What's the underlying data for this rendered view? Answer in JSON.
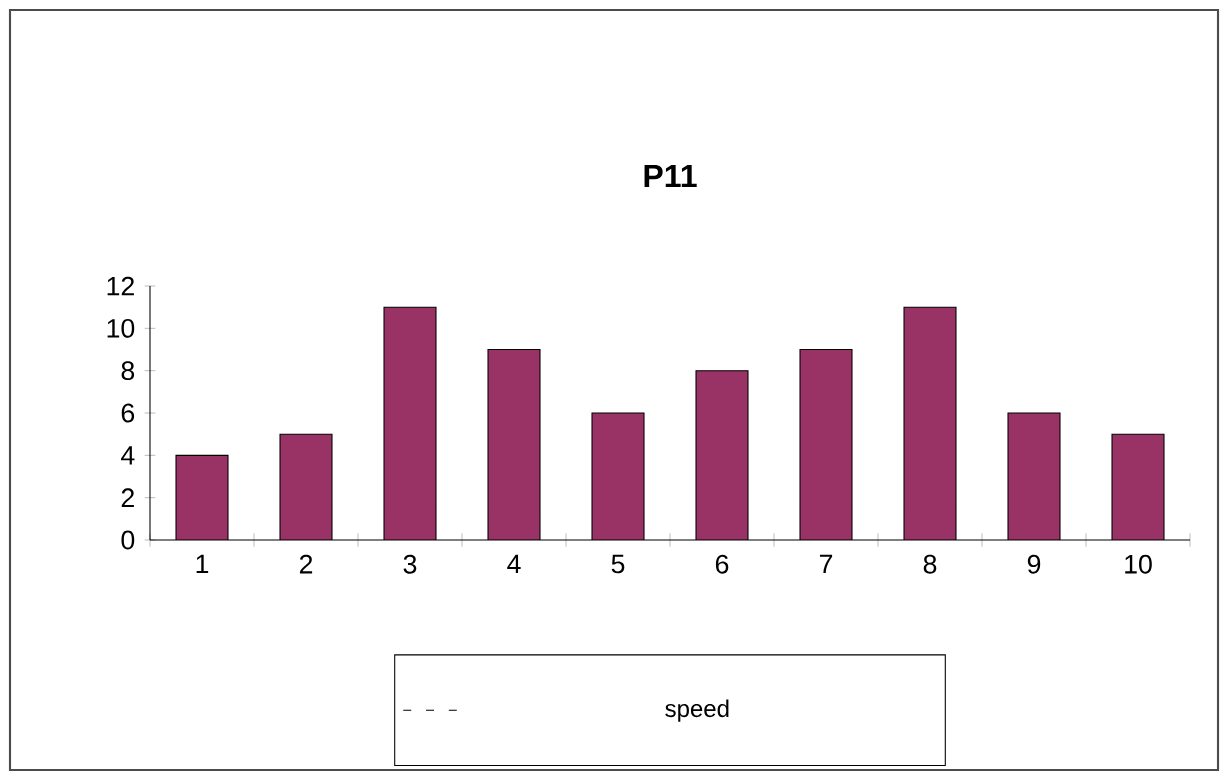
{
  "chart_data": {
    "type": "bar",
    "title": "P11",
    "categories": [
      "1",
      "2",
      "3",
      "4",
      "5",
      "6",
      "7",
      "8",
      "9",
      "10"
    ],
    "series": [
      {
        "name": "speed",
        "color": "#993366",
        "values": [
          4,
          5,
          11,
          9,
          6,
          8,
          9,
          11,
          6,
          5
        ]
      }
    ],
    "ylim": [
      0,
      12
    ],
    "yticks": [
      0,
      2,
      4,
      6,
      8,
      10,
      12
    ],
    "legend": "bottom"
  }
}
